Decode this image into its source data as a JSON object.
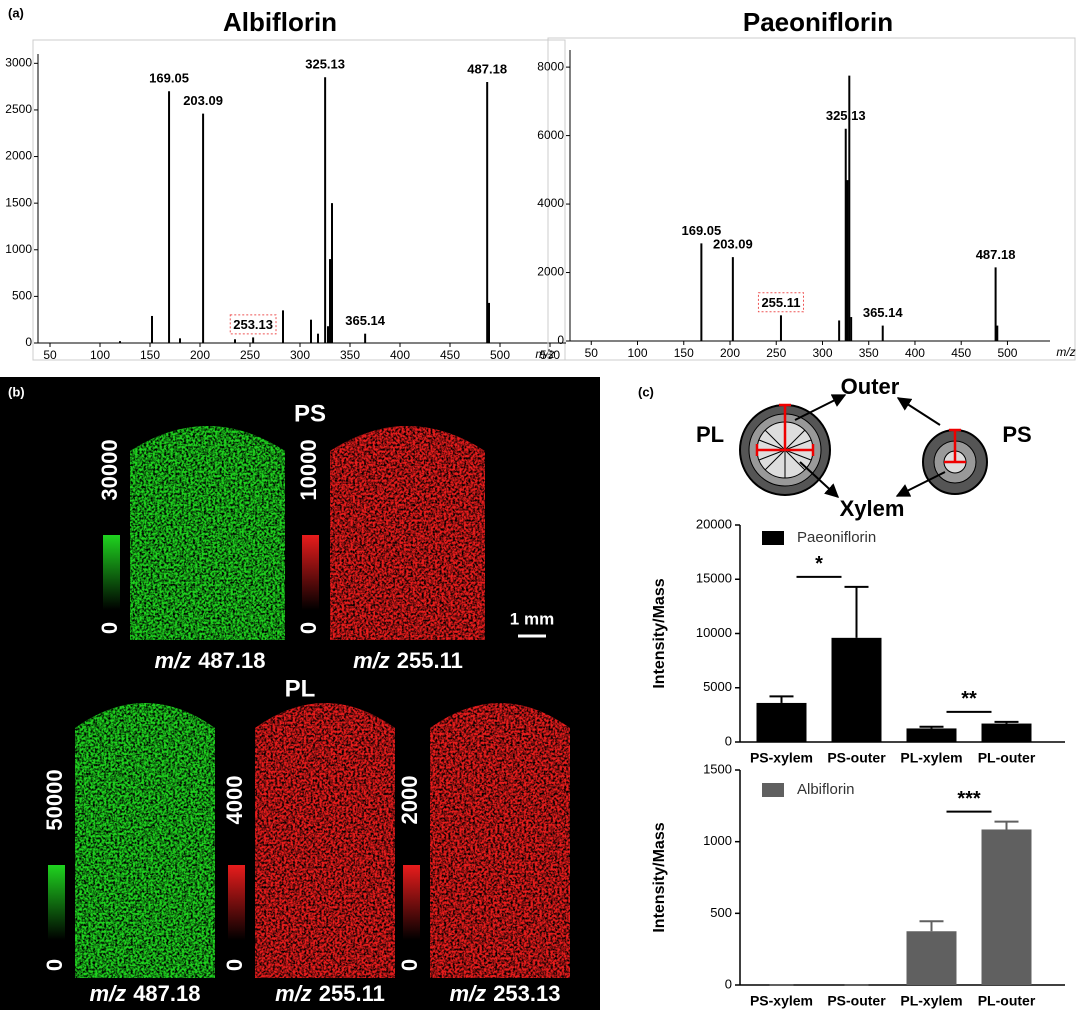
{
  "panel_a": {
    "label": "(a)"
  },
  "chart_data": [
    {
      "type": "spectrum",
      "title": "Albiflorin",
      "x_label": "m/z",
      "color": "#000000",
      "x": [
        120,
        152,
        169.05,
        180,
        203.09,
        235,
        253.13,
        283,
        311,
        318,
        325.13,
        328,
        330,
        332,
        365.14,
        487.18,
        489
      ],
      "values": [
        20,
        290,
        2700,
        50,
        2460,
        40,
        60,
        350,
        250,
        100,
        2850,
        180,
        900,
        1500,
        100,
        2800,
        430
      ],
      "labeled": [
        2,
        4,
        6,
        10,
        14,
        15
      ],
      "boxed": [
        6
      ],
      "xlim": [
        38,
        566
      ],
      "xticks": [
        50,
        100,
        150,
        200,
        250,
        300,
        350,
        400,
        450,
        500,
        550
      ],
      "ylim": [
        0,
        3100
      ],
      "yticks": [
        0,
        500,
        1000,
        1500,
        2000,
        2500,
        3000
      ]
    },
    {
      "type": "spectrum",
      "title": "Paeoniflorin",
      "x_label": "m/z",
      "color": "#000000",
      "x": [
        169.05,
        203.09,
        255.11,
        318,
        325.13,
        327,
        329,
        331,
        365.14,
        487.18,
        489
      ],
      "values": [
        2850,
        2450,
        750,
        600,
        6200,
        4700,
        7750,
        700,
        450,
        2150,
        450
      ],
      "labeled": [
        0,
        1,
        2,
        4,
        8,
        9
      ],
      "boxed": [
        2
      ],
      "xlim": [
        27,
        546
      ],
      "xticks": [
        50,
        100,
        150,
        200,
        250,
        300,
        350,
        400,
        450,
        500
      ],
      "ylim": [
        0,
        8500
      ],
      "yticks": [
        0,
        2000,
        4000,
        6000,
        8000
      ]
    },
    {
      "type": "bar",
      "y_label": "Intensity/Mass",
      "categories": [
        "PS-xylem",
        "PS-outer",
        "PL-xylem",
        "PL-outer"
      ],
      "series": [
        {
          "name": "Paeoniflorin",
          "color": "#000000",
          "values": [
            3600,
            9600,
            1250,
            1700
          ],
          "errors": [
            600,
            4700,
            150,
            150
          ]
        }
      ],
      "ylim": [
        0,
        20000
      ],
      "yticks": [
        0,
        5000,
        10000,
        15000,
        20000
      ],
      "significance": [
        {
          "label": "*",
          "pair": [
            0,
            1
          ]
        },
        {
          "label": "**",
          "pair": [
            2,
            3
          ]
        }
      ]
    },
    {
      "type": "bar",
      "y_label": "Intensity/Mass",
      "categories": [
        "PS-xylem",
        "PS-outer",
        "PL-xylem",
        "PL-outer"
      ],
      "series": [
        {
          "name": "Albiflorin",
          "color": "#606060",
          "values": [
            0,
            0,
            375,
            1085
          ],
          "errors": [
            0,
            0,
            70,
            55
          ]
        }
      ],
      "ylim": [
        0,
        1500
      ],
      "yticks": [
        0,
        500,
        1000,
        1500
      ],
      "significance": [
        {
          "label": "***",
          "pair": [
            2,
            3
          ]
        }
      ]
    }
  ],
  "panel_b": {
    "label": "(b)",
    "scale_bar": "1 mm",
    "groups": [
      {
        "title": "PS",
        "images": [
          {
            "prefix": "m/z",
            "mz": "487.18",
            "color": "#1fd31f",
            "max": 30000,
            "min": 0
          },
          {
            "prefix": "m/z",
            "mz": "255.11",
            "color": "#e81c1c",
            "max": 10000,
            "min": 0
          }
        ]
      },
      {
        "title": "PL",
        "images": [
          {
            "prefix": "m/z",
            "mz": "487.18",
            "color": "#1fd31f",
            "max": 50000,
            "min": 0
          },
          {
            "prefix": "m/z",
            "mz": "255.11",
            "color": "#e81c1c",
            "max": 4000,
            "min": 0
          },
          {
            "prefix": "m/z",
            "mz": "253.13",
            "color": "#e81c1c",
            "max": 2000,
            "min": 0
          }
        ]
      }
    ]
  },
  "panel_c": {
    "label": "(c)",
    "outer": "Outer",
    "xylem": "Xylem",
    "pl": "PL",
    "ps": "PS"
  }
}
